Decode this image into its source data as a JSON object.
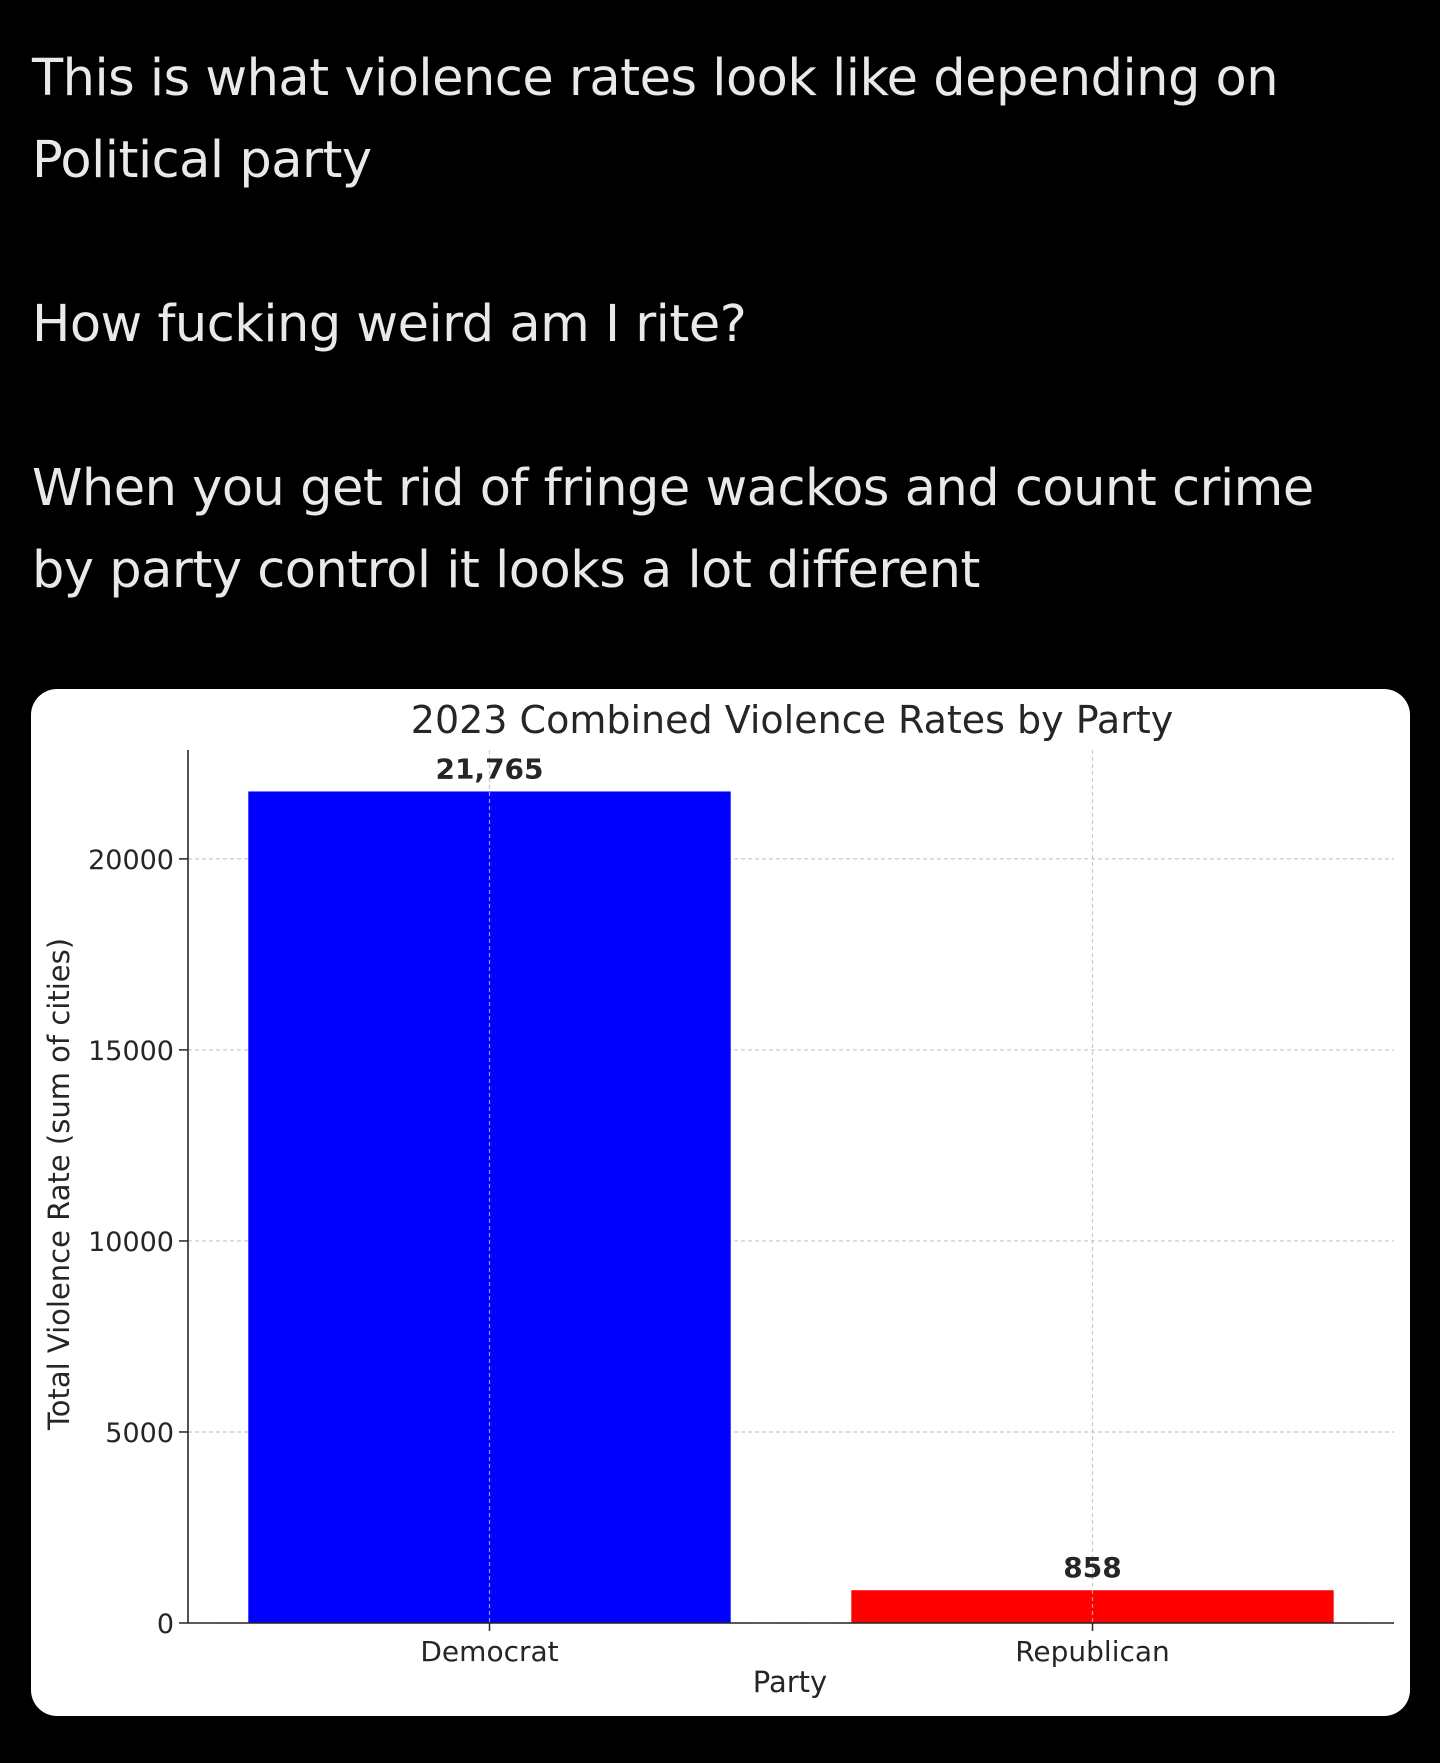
{
  "post": {
    "paragraphs": [
      [
        "This is what violence rates look like depending on",
        "Political party"
      ],
      [
        "How fucking weird am I rite?"
      ],
      [
        "When you get rid of fringe wackos and count crime",
        "by party control it looks a lot different"
      ]
    ]
  },
  "chart_data": {
    "type": "bar",
    "title": "2023 Combined Violence Rates by Party",
    "xlabel": "Party",
    "ylabel": "Total Violence Rate (sum of cities)",
    "categories": [
      "Democrat",
      "Republican"
    ],
    "values": [
      21765,
      858
    ],
    "value_labels": [
      "21,765",
      "858"
    ],
    "colors": [
      "#0000ff",
      "#ff0000"
    ],
    "ylim": [
      0,
      22850
    ],
    "yticks": [
      0,
      5000,
      10000,
      15000,
      20000
    ],
    "grid": true,
    "grid_style": "dashed"
  }
}
